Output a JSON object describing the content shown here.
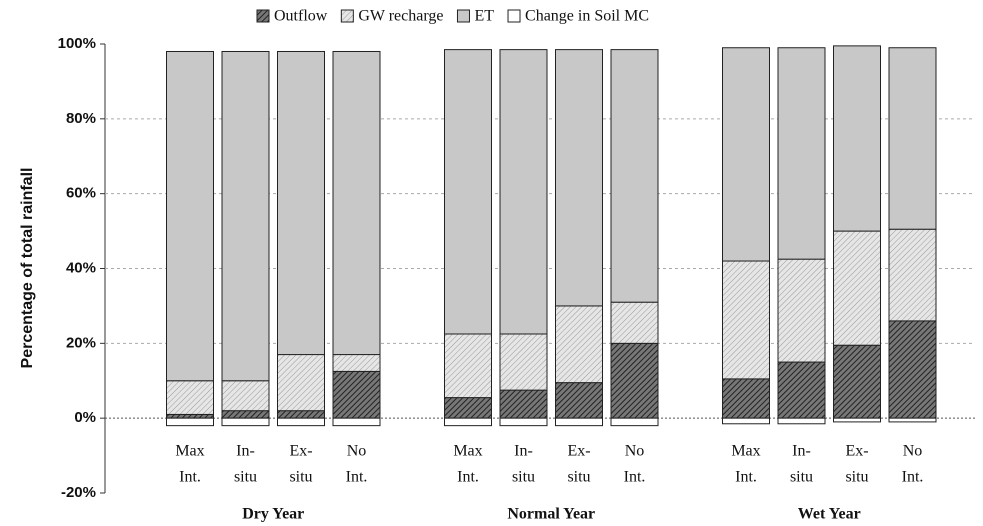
{
  "chart_data": {
    "type": "stacked-bar",
    "ylabel": "Percentage of total rainfall",
    "groups": [
      "Dry Year",
      "Normal Year",
      "Wet Year"
    ],
    "categories": [
      [
        "Max",
        "Int."
      ],
      [
        "In-",
        "situ"
      ],
      [
        "Ex-",
        "situ"
      ],
      [
        "No",
        "Int."
      ],
      [
        "Max",
        "Int."
      ],
      [
        "In-",
        "situ"
      ],
      [
        "Ex-",
        "situ"
      ],
      [
        "No",
        "Int."
      ],
      [
        "Max",
        "Int."
      ],
      [
        "In-",
        "situ"
      ],
      [
        "Ex-",
        "situ"
      ],
      [
        "No",
        "Int."
      ]
    ],
    "series": [
      {
        "name": "Outflow",
        "color": "#4a4a4a",
        "hatch": "dense",
        "values": [
          1,
          2,
          2,
          12.5,
          5.5,
          7.5,
          9.5,
          20,
          10.5,
          15,
          19.5,
          26
        ]
      },
      {
        "name": "GW recharge",
        "color": "#9a9a9a",
        "hatch": "light",
        "values": [
          9,
          8,
          15,
          4.5,
          17,
          15,
          20.5,
          11,
          31.5,
          27.5,
          30.5,
          24.5
        ]
      },
      {
        "name": "ET",
        "color": "#c8c8c8",
        "values": [
          88,
          88,
          81,
          81,
          76,
          76,
          68.5,
          67.5,
          57,
          56.5,
          49.5,
          48.5
        ]
      },
      {
        "name": "Change in Soil MC",
        "color": "#ffffff",
        "values": [
          -2,
          -2,
          -2,
          -2,
          -2,
          -2,
          -2,
          -2,
          -1.5,
          -1.5,
          -1,
          -1
        ]
      }
    ],
    "ylim": [
      -20,
      100
    ],
    "yticks": [
      {
        "value": -20,
        "label": "-20%"
      },
      {
        "value": 0,
        "label": "0%"
      },
      {
        "value": 20,
        "label": "20%"
      },
      {
        "value": 40,
        "label": "40%"
      },
      {
        "value": 60,
        "label": "60%"
      },
      {
        "value": 80,
        "label": "80%"
      },
      {
        "value": 100,
        "label": "100%"
      }
    ],
    "grid": true
  }
}
